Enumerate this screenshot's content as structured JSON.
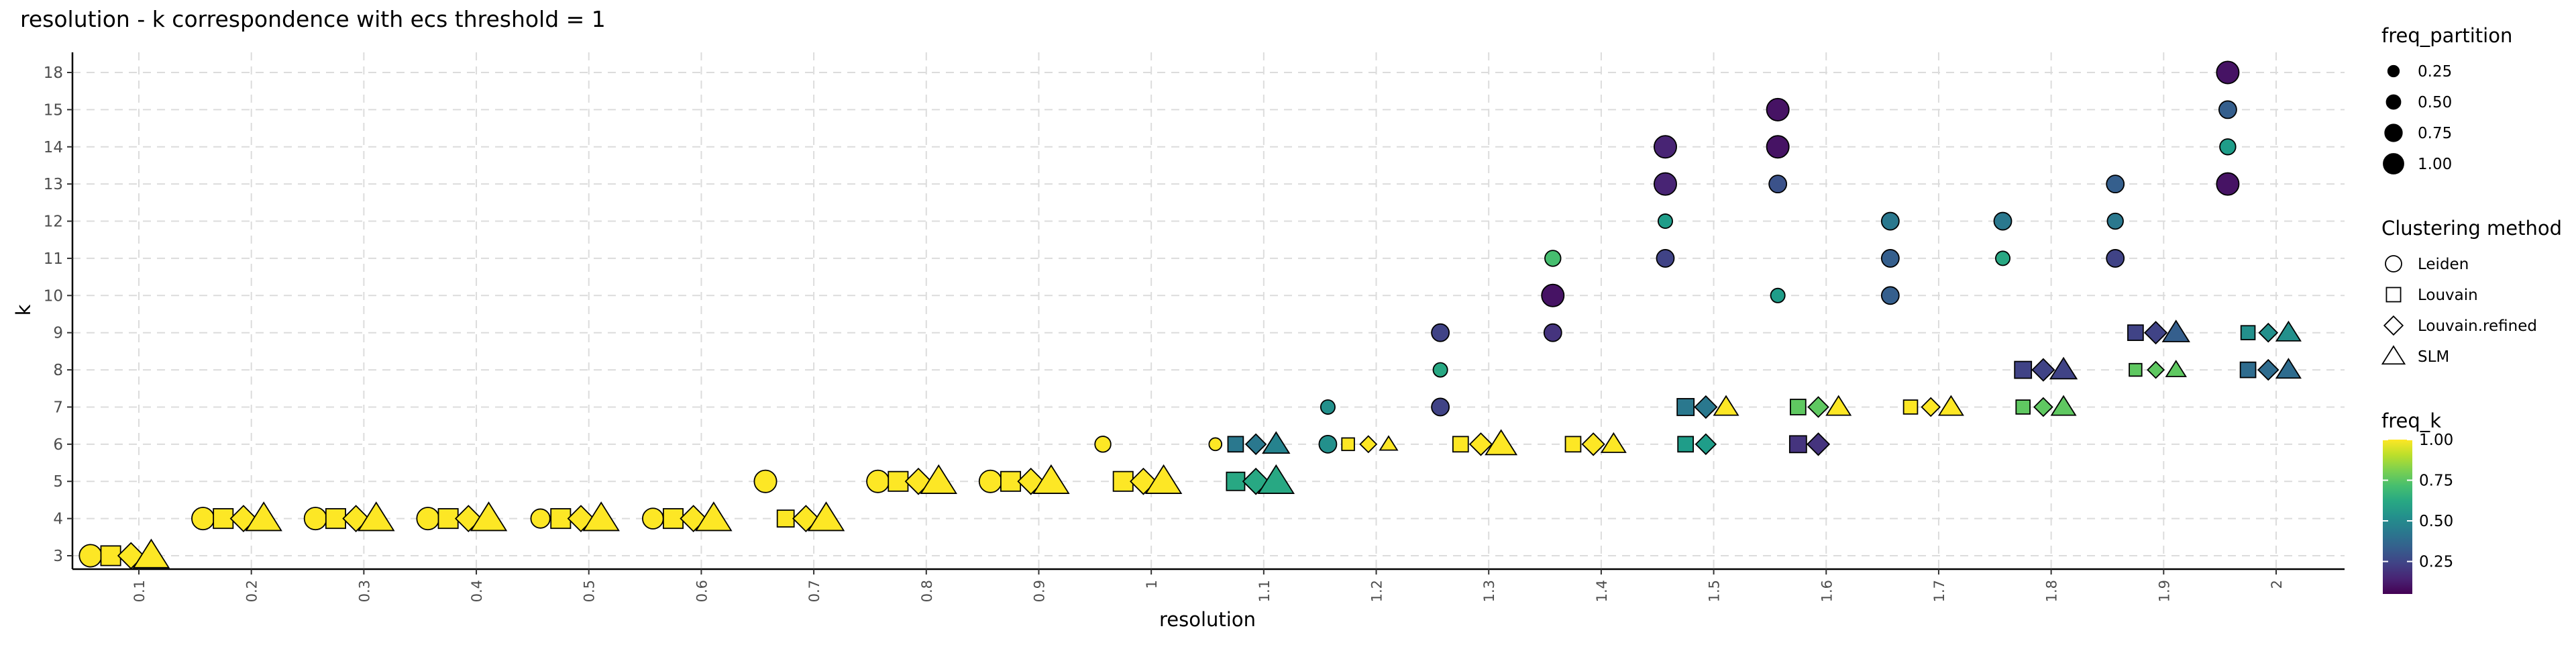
{
  "chart_data": {
    "type": "scatter",
    "title": "resolution - k correspondence with ecs threshold = 1",
    "xlabel": "resolution",
    "ylabel": "k",
    "x_ticks": [
      "0.1",
      "0.2",
      "0.3",
      "0.4",
      "0.5",
      "0.6",
      "0.7",
      "0.8",
      "0.9",
      "1",
      "1.1",
      "1.2",
      "1.3",
      "1.4",
      "1.5",
      "1.6",
      "1.7",
      "1.8",
      "1.9",
      "2"
    ],
    "y_ticks": [
      "3",
      "4",
      "5",
      "6",
      "7",
      "8",
      "9",
      "10",
      "11",
      "12",
      "13",
      "14",
      "15",
      "18"
    ],
    "grid": true,
    "methods": [
      "Leiden",
      "Louvain",
      "Louvain.refined",
      "SLM"
    ],
    "point_fields": [
      "resolution",
      "k",
      "method_index",
      "freq_partition",
      "freq_k"
    ],
    "points": [
      [
        0.1,
        "3",
        0,
        0.8,
        1
      ],
      [
        0.1,
        "3",
        1,
        0.8,
        1
      ],
      [
        0.1,
        "3",
        2,
        0.8,
        1
      ],
      [
        0.1,
        "3",
        3,
        1,
        1
      ],
      [
        0.2,
        "4",
        0,
        0.8,
        1
      ],
      [
        0.2,
        "4",
        1,
        0.8,
        1
      ],
      [
        0.2,
        "4",
        2,
        0.8,
        1
      ],
      [
        0.2,
        "4",
        3,
        1,
        1
      ],
      [
        0.3,
        "4",
        0,
        0.8,
        1
      ],
      [
        0.3,
        "4",
        1,
        0.8,
        1
      ],
      [
        0.3,
        "4",
        2,
        0.8,
        1
      ],
      [
        0.3,
        "4",
        3,
        1,
        1
      ],
      [
        0.4,
        "4",
        0,
        0.8,
        1
      ],
      [
        0.4,
        "4",
        1,
        0.8,
        1
      ],
      [
        0.4,
        "4",
        2,
        0.8,
        1
      ],
      [
        0.4,
        "4",
        3,
        1,
        1
      ],
      [
        0.5,
        "4",
        0,
        0.6,
        1
      ],
      [
        0.5,
        "4",
        1,
        0.8,
        1
      ],
      [
        0.5,
        "4",
        2,
        0.8,
        1
      ],
      [
        0.5,
        "4",
        3,
        1,
        1
      ],
      [
        0.6,
        "4",
        0,
        0.7,
        1
      ],
      [
        0.6,
        "4",
        1,
        0.8,
        1
      ],
      [
        0.6,
        "4",
        2,
        0.8,
        1
      ],
      [
        0.6,
        "4",
        3,
        1,
        1
      ],
      [
        0.7,
        "5",
        0,
        0.8,
        1
      ],
      [
        0.7,
        "4",
        1,
        0.6,
        1
      ],
      [
        0.7,
        "4",
        2,
        0.8,
        1
      ],
      [
        0.7,
        "4",
        3,
        1,
        1
      ],
      [
        0.8,
        "5",
        0,
        0.8,
        1
      ],
      [
        0.8,
        "5",
        1,
        0.8,
        1
      ],
      [
        0.8,
        "5",
        2,
        0.8,
        1
      ],
      [
        0.8,
        "5",
        3,
        1,
        1
      ],
      [
        0.9,
        "5",
        0,
        0.8,
        1
      ],
      [
        0.9,
        "5",
        1,
        0.8,
        1
      ],
      [
        0.9,
        "5",
        2,
        0.8,
        1
      ],
      [
        0.9,
        "5",
        3,
        1,
        1
      ],
      [
        1.0,
        "6",
        0,
        0.4,
        1
      ],
      [
        1.0,
        "5",
        1,
        0.8,
        1
      ],
      [
        1.0,
        "5",
        2,
        0.8,
        1
      ],
      [
        1.0,
        "5",
        3,
        1,
        1
      ],
      [
        1.1,
        "6",
        0,
        0.2,
        1
      ],
      [
        1.1,
        "6",
        1,
        0.5,
        0.4
      ],
      [
        1.1,
        "6",
        2,
        0.5,
        0.4
      ],
      [
        1.1,
        "6",
        3,
        0.6,
        0.45
      ],
      [
        1.1,
        "5",
        1,
        0.7,
        0.6
      ],
      [
        1.1,
        "5",
        2,
        0.8,
        0.6
      ],
      [
        1.1,
        "5",
        3,
        1,
        0.6
      ],
      [
        1.2,
        "7",
        0,
        0.3,
        0.5
      ],
      [
        1.2,
        "6",
        0,
        0.5,
        0.5
      ],
      [
        1.2,
        "6",
        1,
        0.3,
        1
      ],
      [
        1.2,
        "6",
        2,
        0.3,
        1
      ],
      [
        1.2,
        "6",
        3,
        0.2,
        1
      ],
      [
        1.3,
        "9",
        0,
        0.5,
        0.2
      ],
      [
        1.3,
        "8",
        0,
        0.3,
        0.6
      ],
      [
        1.3,
        "7",
        0,
        0.5,
        0.2
      ],
      [
        1.3,
        "6",
        1,
        0.5,
        1
      ],
      [
        1.3,
        "6",
        2,
        0.6,
        1
      ],
      [
        1.3,
        "6",
        3,
        0.8,
        1
      ],
      [
        1.4,
        "11",
        0,
        0.4,
        0.7
      ],
      [
        1.4,
        "10",
        0,
        0.8,
        0.05
      ],
      [
        1.4,
        "9",
        0,
        0.5,
        0.15
      ],
      [
        1.4,
        "6",
        1,
        0.5,
        1
      ],
      [
        1.4,
        "6",
        2,
        0.6,
        1
      ],
      [
        1.4,
        "6",
        3,
        0.5,
        1
      ],
      [
        1.5,
        "14",
        0,
        0.8,
        0.1
      ],
      [
        1.5,
        "13",
        0,
        0.8,
        0.1
      ],
      [
        1.5,
        "12",
        0,
        0.3,
        0.55
      ],
      [
        1.5,
        "11",
        0,
        0.5,
        0.2
      ],
      [
        1.5,
        "7",
        1,
        0.6,
        0.4
      ],
      [
        1.5,
        "7",
        2,
        0.6,
        0.4
      ],
      [
        1.5,
        "7",
        3,
        0.5,
        1
      ],
      [
        1.5,
        "6",
        1,
        0.5,
        0.55
      ],
      [
        1.5,
        "6",
        2,
        0.5,
        0.55
      ],
      [
        1.6,
        "15",
        0,
        0.8,
        0.05
      ],
      [
        1.6,
        "14",
        0,
        0.8,
        0.05
      ],
      [
        1.6,
        "13",
        0,
        0.5,
        0.25
      ],
      [
        1.6,
        "10",
        0,
        0.3,
        0.55
      ],
      [
        1.6,
        "7",
        1,
        0.5,
        0.75
      ],
      [
        1.6,
        "7",
        2,
        0.5,
        0.75
      ],
      [
        1.6,
        "7",
        3,
        0.5,
        1
      ],
      [
        1.6,
        "6",
        1,
        0.6,
        0.15
      ],
      [
        1.6,
        "6",
        2,
        0.6,
        0.15
      ],
      [
        1.7,
        "12",
        0,
        0.5,
        0.4
      ],
      [
        1.7,
        "11",
        0,
        0.5,
        0.3
      ],
      [
        1.7,
        "10",
        0,
        0.5,
        0.3
      ],
      [
        1.7,
        "7",
        1,
        0.4,
        1
      ],
      [
        1.7,
        "7",
        2,
        0.4,
        1
      ],
      [
        1.7,
        "7",
        3,
        0.5,
        1
      ],
      [
        1.8,
        "12",
        0,
        0.5,
        0.4
      ],
      [
        1.8,
        "11",
        0,
        0.3,
        0.6
      ],
      [
        1.8,
        "8",
        1,
        0.6,
        0.2
      ],
      [
        1.8,
        "8",
        2,
        0.6,
        0.2
      ],
      [
        1.8,
        "8",
        3,
        0.6,
        0.2
      ],
      [
        1.8,
        "7",
        1,
        0.4,
        0.75
      ],
      [
        1.8,
        "7",
        2,
        0.4,
        0.75
      ],
      [
        1.8,
        "7",
        3,
        0.5,
        0.75
      ],
      [
        1.9,
        "13",
        0,
        0.5,
        0.3
      ],
      [
        1.9,
        "12",
        0,
        0.4,
        0.4
      ],
      [
        1.9,
        "11",
        0,
        0.5,
        0.2
      ],
      [
        1.9,
        "9",
        1,
        0.5,
        0.2
      ],
      [
        1.9,
        "9",
        2,
        0.6,
        0.2
      ],
      [
        1.9,
        "9",
        3,
        0.6,
        0.3
      ],
      [
        1.9,
        "8",
        1,
        0.3,
        0.75
      ],
      [
        1.9,
        "8",
        2,
        0.3,
        0.75
      ],
      [
        1.9,
        "8",
        3,
        0.3,
        0.75
      ],
      [
        2.0,
        "18",
        0,
        0.8,
        0.05
      ],
      [
        2.0,
        "15",
        0,
        0.5,
        0.3
      ],
      [
        2.0,
        "14",
        0,
        0.4,
        0.55
      ],
      [
        2.0,
        "13",
        0,
        0.8,
        0.05
      ],
      [
        2.0,
        "9",
        1,
        0.4,
        0.5
      ],
      [
        2.0,
        "9",
        2,
        0.4,
        0.5
      ],
      [
        2.0,
        "9",
        3,
        0.5,
        0.5
      ],
      [
        2.0,
        "8",
        1,
        0.5,
        0.35
      ],
      [
        2.0,
        "8",
        2,
        0.5,
        0.35
      ],
      [
        2.0,
        "8",
        3,
        0.5,
        0.35
      ]
    ],
    "legend": {
      "size_title": "freq_partition",
      "size_labels": [
        "0.25",
        "0.50",
        "0.75",
        "1.00"
      ],
      "size_values": [
        0.25,
        0.5,
        0.75,
        1.0
      ],
      "shape_title": "Clustering method",
      "shape_labels": [
        "Leiden",
        "Louvain",
        "Louvain.refined",
        "SLM"
      ],
      "color_title": "freq_k",
      "color_labels": [
        "1.00",
        "0.75",
        "0.50",
        "0.25"
      ],
      "color_values": [
        1.0,
        0.75,
        0.5,
        0.25
      ],
      "colorscale": "viridis"
    }
  }
}
